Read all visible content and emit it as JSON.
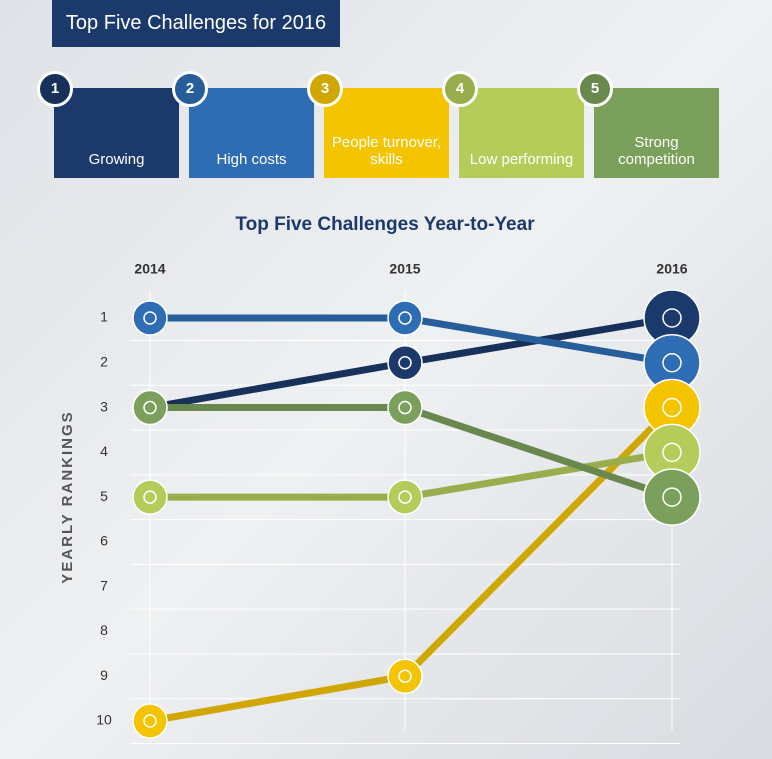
{
  "header": {
    "title": "Top Five Challenges for 2016"
  },
  "chart_data": {
    "type": "line",
    "title": "Top Five Challenges Year-to-Year",
    "y_label": "YEARLY RANKINGS",
    "categories": [
      "2014",
      "2015",
      "2016"
    ],
    "ylim": [
      1,
      10
    ],
    "y_inverted": true,
    "yticks": [
      1,
      2,
      3,
      4,
      5,
      6,
      7,
      8,
      9,
      10
    ],
    "grid": true,
    "series": [
      {
        "name": "Growing",
        "number": 1,
        "color": "#1b3a6b",
        "values": [
          3,
          2,
          1
        ]
      },
      {
        "name": "High costs",
        "number": 2,
        "color": "#2e6db4",
        "values": [
          1,
          1,
          2
        ]
      },
      {
        "name": "People turnover, skills",
        "number": 3,
        "color": "#f5c400",
        "values": [
          10,
          9,
          3
        ]
      },
      {
        "name": "Low performing",
        "number": 4,
        "color": "#b5cc5a",
        "values": [
          5,
          5,
          4
        ]
      },
      {
        "name": "Strong competition",
        "number": 5,
        "color": "#7ba05b",
        "values": [
          3,
          3,
          5
        ]
      }
    ]
  }
}
